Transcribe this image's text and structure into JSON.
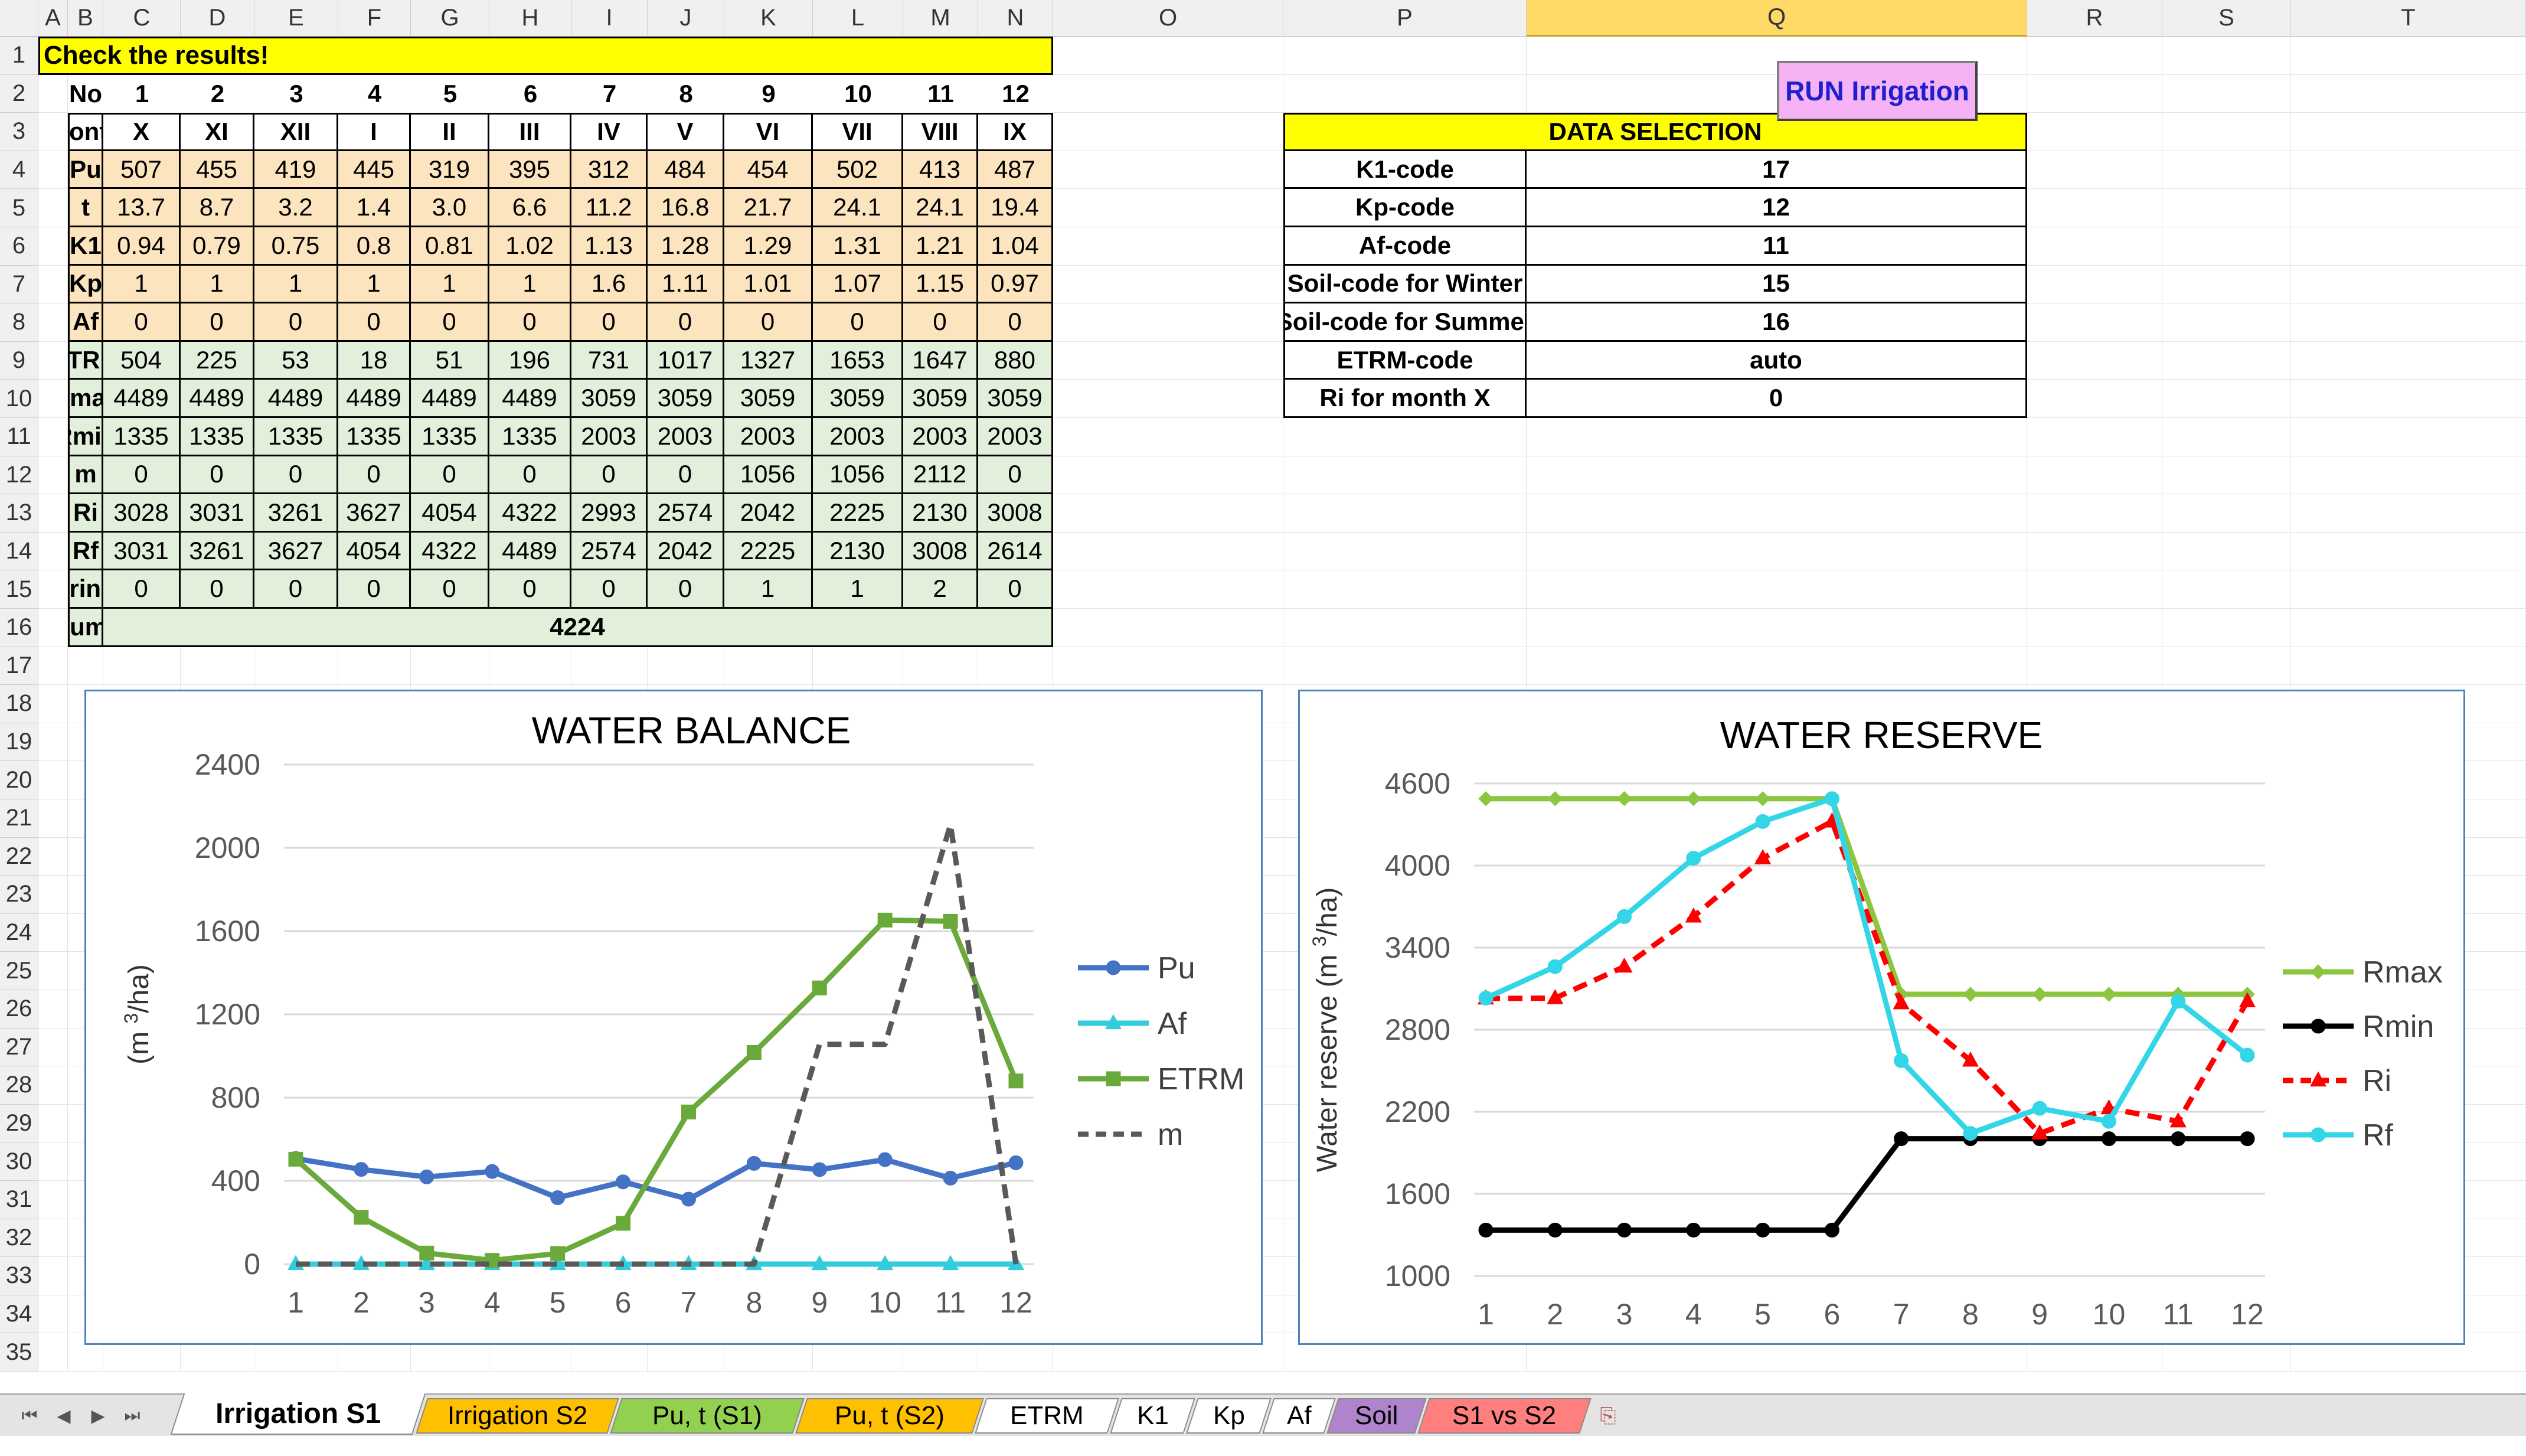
{
  "sheet": {
    "columns": [
      "A",
      "B",
      "C",
      "D",
      "E",
      "F",
      "G",
      "H",
      "I",
      "J",
      "K",
      "L",
      "M",
      "N",
      "O",
      "P",
      "Q",
      "R",
      "S",
      "T"
    ],
    "rows": [
      "1",
      "2",
      "3",
      "4",
      "5",
      "6",
      "7",
      "8",
      "9",
      "10",
      "11",
      "12",
      "13",
      "14",
      "15",
      "16",
      "17",
      "18",
      "19",
      "20",
      "21",
      "22",
      "23",
      "24",
      "25",
      "26",
      "27",
      "28",
      "29",
      "30",
      "31",
      "32",
      "33",
      "34",
      "35"
    ],
    "selected_column": "Q"
  },
  "banner": "Check the results!",
  "table": {
    "rows": [
      {
        "label": "No",
        "values": [
          "1",
          "2",
          "3",
          "4",
          "5",
          "6",
          "7",
          "8",
          "9",
          "10",
          "11",
          "12"
        ],
        "bg": "#ffffff",
        "bold": true,
        "grid": false
      },
      {
        "label": "Month",
        "values": [
          "X",
          "XI",
          "XII",
          "I",
          "II",
          "III",
          "IV",
          "V",
          "VI",
          "VII",
          "VIII",
          "IX"
        ],
        "bg": "#ffffff",
        "bold": true,
        "grid": true
      },
      {
        "label": "Pu",
        "values": [
          "507",
          "455",
          "419",
          "445",
          "319",
          "395",
          "312",
          "484",
          "454",
          "502",
          "413",
          "487"
        ],
        "bg": "#fce4bf",
        "bold": false,
        "grid": true
      },
      {
        "label": "t",
        "values": [
          "13.7",
          "8.7",
          "3.2",
          "1.4",
          "3.0",
          "6.6",
          "11.2",
          "16.8",
          "21.7",
          "24.1",
          "24.1",
          "19.4"
        ],
        "bg": "#fce4bf",
        "bold": false,
        "grid": true
      },
      {
        "label": "K1",
        "values": [
          "0.94",
          "0.79",
          "0.75",
          "0.8",
          "0.81",
          "1.02",
          "1.13",
          "1.28",
          "1.29",
          "1.31",
          "1.21",
          "1.04"
        ],
        "bg": "#fce4bf",
        "bold": false,
        "grid": true
      },
      {
        "label": "Kp",
        "values": [
          "1",
          "1",
          "1",
          "1",
          "1",
          "1",
          "1.6",
          "1.11",
          "1.01",
          "1.07",
          "1.15",
          "0.97"
        ],
        "bg": "#fce4bf",
        "bold": false,
        "grid": true
      },
      {
        "label": "Af",
        "values": [
          "0",
          "0",
          "0",
          "0",
          "0",
          "0",
          "0",
          "0",
          "0",
          "0",
          "0",
          "0"
        ],
        "bg": "#fce4bf",
        "bold": false,
        "grid": true
      },
      {
        "label": "ETRM",
        "values": [
          "504",
          "225",
          "53",
          "18",
          "51",
          "196",
          "731",
          "1017",
          "1327",
          "1653",
          "1647",
          "880"
        ],
        "bg": "#e2efda",
        "bold": false,
        "grid": true
      },
      {
        "label": "Rmax",
        "values": [
          "4489",
          "4489",
          "4489",
          "4489",
          "4489",
          "4489",
          "3059",
          "3059",
          "3059",
          "3059",
          "3059",
          "3059"
        ],
        "bg": "#e2efda",
        "bold": false,
        "grid": true
      },
      {
        "label": "Rmin",
        "values": [
          "1335",
          "1335",
          "1335",
          "1335",
          "1335",
          "1335",
          "2003",
          "2003",
          "2003",
          "2003",
          "2003",
          "2003"
        ],
        "bg": "#e2efda",
        "bold": false,
        "grid": true
      },
      {
        "label": "m",
        "values": [
          "0",
          "0",
          "0",
          "0",
          "0",
          "0",
          "0",
          "0",
          "1056",
          "1056",
          "2112",
          "0"
        ],
        "bg": "#e2efda",
        "bold": false,
        "grid": true
      },
      {
        "label": "Ri",
        "values": [
          "3028",
          "3031",
          "3261",
          "3627",
          "4054",
          "4322",
          "2993",
          "2574",
          "2042",
          "2225",
          "2130",
          "3008"
        ],
        "bg": "#e2efda",
        "bold": false,
        "grid": true
      },
      {
        "label": "Rf",
        "values": [
          "3031",
          "3261",
          "3627",
          "4054",
          "4322",
          "4489",
          "2574",
          "2042",
          "2225",
          "2130",
          "3008",
          "2614"
        ],
        "bg": "#e2efda",
        "bold": false,
        "grid": true
      },
      {
        "label": "Watering no.",
        "values": [
          "0",
          "0",
          "0",
          "0",
          "0",
          "0",
          "0",
          "0",
          "1",
          "1",
          "2",
          "0"
        ],
        "bg": "#e2efda",
        "bold": false,
        "grid": true
      }
    ],
    "sum_label_prefix": "M (sum ",
    "sum_label_var": "m",
    "sum_label_suffix": " )",
    "sum_value": "4224"
  },
  "run_button": "RUN Irrigation",
  "data_selection": {
    "title": "DATA SELECTION",
    "rows": [
      {
        "label": "K1-code",
        "value": "17"
      },
      {
        "label": "Kp-code",
        "value": "12"
      },
      {
        "label": "Af-code",
        "value": "11"
      },
      {
        "label": "Soil-code for Winter",
        "value": "15"
      },
      {
        "label": "Soil-code for Summer",
        "value": "16"
      },
      {
        "label": "ETRM-code",
        "value": "auto"
      },
      {
        "label": "Ri for month X",
        "value": "0"
      }
    ]
  },
  "chart_data": [
    {
      "type": "line",
      "title": "WATER BALANCE",
      "ylabel_prefix": "(m ",
      "ylabel_sup": "3",
      "ylabel_suffix": "/ha)",
      "x": [
        1,
        2,
        3,
        4,
        5,
        6,
        7,
        8,
        9,
        10,
        11,
        12
      ],
      "ylim": [
        0,
        2400
      ],
      "yticks": [
        0,
        400,
        800,
        1200,
        1600,
        2000,
        2400
      ],
      "grid": true,
      "legend": "right",
      "series": [
        {
          "name": "Pu",
          "values": [
            507,
            455,
            419,
            445,
            319,
            395,
            312,
            484,
            454,
            502,
            413,
            487
          ],
          "color": "#4472c4",
          "marker": "circle",
          "dash": false
        },
        {
          "name": "Af",
          "values": [
            0,
            0,
            0,
            0,
            0,
            0,
            0,
            0,
            0,
            0,
            0,
            0
          ],
          "color": "#33ccdd",
          "marker": "triangle",
          "dash": false
        },
        {
          "name": "ETRM",
          "values": [
            504,
            225,
            53,
            18,
            51,
            196,
            731,
            1017,
            1327,
            1653,
            1647,
            880
          ],
          "color": "#6aaa3a",
          "marker": "square",
          "dash": false
        },
        {
          "name": "m",
          "values": [
            0,
            0,
            0,
            0,
            0,
            0,
            0,
            0,
            1056,
            1056,
            2112,
            0
          ],
          "color": "#595959",
          "marker": "none",
          "dash": true
        }
      ]
    },
    {
      "type": "line",
      "title": "WATER  RESERVE",
      "ylabel_prefix": "Water reserve (m ",
      "ylabel_sup": "3",
      "ylabel_suffix": "/ha)",
      "x": [
        1,
        2,
        3,
        4,
        5,
        6,
        7,
        8,
        9,
        10,
        11,
        12
      ],
      "ylim": [
        1000,
        4600
      ],
      "yticks": [
        1000,
        1600,
        2200,
        2800,
        3400,
        4000,
        4600
      ],
      "grid": true,
      "legend": "right",
      "series": [
        {
          "name": "Rmax",
          "values": [
            4489,
            4489,
            4489,
            4489,
            4489,
            4489,
            3059,
            3059,
            3059,
            3059,
            3059,
            3059
          ],
          "color": "#8cc63f",
          "marker": "diamond",
          "dash": false
        },
        {
          "name": "Rmin",
          "values": [
            1335,
            1335,
            1335,
            1335,
            1335,
            1335,
            2003,
            2003,
            2003,
            2003,
            2003,
            2003
          ],
          "color": "#000000",
          "marker": "circle",
          "dash": false
        },
        {
          "name": "Ri",
          "values": [
            3028,
            3031,
            3261,
            3627,
            4054,
            4322,
            2993,
            2574,
            2042,
            2225,
            2130,
            3008
          ],
          "color": "#ff0000",
          "marker": "triangle",
          "dash": true
        },
        {
          "name": "Rf",
          "values": [
            3031,
            3261,
            3627,
            4054,
            4322,
            4489,
            2574,
            2042,
            2225,
            2130,
            3008,
            2614
          ],
          "color": "#33d6e6",
          "marker": "circle",
          "dash": false
        }
      ]
    }
  ],
  "tabs": [
    {
      "label": "Irrigation S1",
      "color": "#ffffff",
      "active": true
    },
    {
      "label": "Irrigation S2",
      "color": "#ffc000",
      "active": false
    },
    {
      "label": "Pu, t (S1)",
      "color": "#92d050",
      "active": false
    },
    {
      "label": "Pu, t (S2)",
      "color": "#ffc000",
      "active": false
    },
    {
      "label": "ETRM",
      "color": "#ffffff",
      "active": false
    },
    {
      "label": "K1",
      "color": "#ffffff",
      "active": false
    },
    {
      "label": "Kp",
      "color": "#ffffff",
      "active": false
    },
    {
      "label": "Af",
      "color": "#ffffff",
      "active": false
    },
    {
      "label": "Soil",
      "color": "#b084cc",
      "active": false
    },
    {
      "label": "S1 vs S2",
      "color": "#ff7f7f",
      "active": false
    }
  ],
  "nav_icons": [
    "first-sheet-icon",
    "prev-sheet-icon",
    "next-sheet-icon",
    "last-sheet-icon"
  ]
}
